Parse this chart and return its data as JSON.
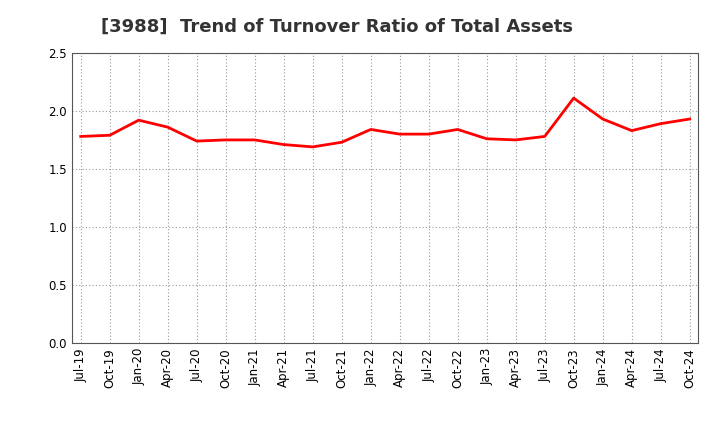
{
  "title": "[3988]  Trend of Turnover Ratio of Total Assets",
  "x_labels": [
    "Jul-19",
    "Oct-19",
    "Jan-20",
    "Apr-20",
    "Jul-20",
    "Oct-20",
    "Jan-21",
    "Apr-21",
    "Jul-21",
    "Oct-21",
    "Jan-22",
    "Apr-22",
    "Jul-22",
    "Oct-22",
    "Jan-23",
    "Apr-23",
    "Jul-23",
    "Oct-23",
    "Jan-24",
    "Apr-24",
    "Jul-24",
    "Oct-24"
  ],
  "values": [
    1.78,
    1.79,
    1.92,
    1.86,
    1.74,
    1.75,
    1.75,
    1.71,
    1.69,
    1.73,
    1.84,
    1.8,
    1.8,
    1.84,
    1.76,
    1.75,
    1.78,
    2.11,
    1.93,
    1.83,
    1.89,
    1.93
  ],
  "line_color": "#FF0000",
  "line_width": 2.0,
  "ylim": [
    0.0,
    2.5
  ],
  "yticks": [
    0.0,
    0.5,
    1.0,
    1.5,
    2.0,
    2.5
  ],
  "grid_color": "#999999",
  "bg_color": "#ffffff",
  "title_fontsize": 13,
  "tick_fontsize": 8.5
}
